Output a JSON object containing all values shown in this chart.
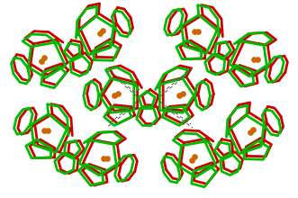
{
  "bg_color": "#ffffff",
  "red": "#cc0000",
  "green": "#00bb00",
  "orange": "#cc6600",
  "dashed_color": "#555555",
  "lw": 2.0,
  "figsize": [
    3.31,
    2.2
  ],
  "dpi": 100
}
